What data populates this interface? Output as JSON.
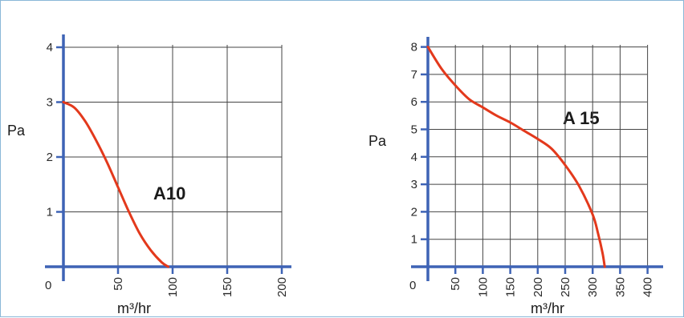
{
  "colors": {
    "grid": "#454545",
    "axis": "#3e63b5",
    "curve": "#e3391c",
    "border": "#8ab8d8"
  },
  "chart_data": [
    {
      "type": "line",
      "title": "",
      "curve_label": "A10",
      "xlabel": "m³/hr",
      "ylabel": "Pa",
      "xlim": [
        0,
        200
      ],
      "ylim": [
        0,
        4
      ],
      "x_ticks": [
        0,
        50,
        100,
        150,
        200
      ],
      "y_ticks": [
        1,
        2,
        3,
        4
      ],
      "origin_label": "0",
      "x_tick_labels": [
        "50",
        "100",
        "150",
        "200"
      ],
      "y_tick_labels": [
        "1",
        "2",
        "3",
        "4"
      ],
      "grid": true,
      "series": [
        {
          "x": [
            0,
            10,
            20,
            30,
            40,
            50,
            60,
            70,
            80,
            90,
            96
          ],
          "y": [
            3.0,
            2.9,
            2.65,
            2.3,
            1.9,
            1.45,
            1.0,
            0.6,
            0.3,
            0.08,
            0.0
          ]
        }
      ]
    },
    {
      "type": "line",
      "title": "",
      "curve_label": "A 15",
      "xlabel": "m³/hr",
      "ylabel": "Pa",
      "xlim": [
        0,
        400
      ],
      "ylim": [
        0,
        8
      ],
      "x_ticks": [
        0,
        50,
        100,
        150,
        200,
        250,
        300,
        350,
        400
      ],
      "y_ticks": [
        1,
        2,
        3,
        4,
        5,
        6,
        7,
        8
      ],
      "origin_label": "0",
      "x_tick_labels": [
        "50",
        "100",
        "150",
        "200",
        "250",
        "300",
        "350",
        "400"
      ],
      "y_tick_labels": [
        "1",
        "2",
        "3",
        "4",
        "5",
        "6",
        "7",
        "8"
      ],
      "grid": true,
      "series": [
        {
          "x": [
            0,
            25,
            50,
            75,
            100,
            125,
            150,
            175,
            200,
            225,
            250,
            275,
            300,
            310,
            318,
            322
          ],
          "y": [
            8.0,
            7.2,
            6.6,
            6.1,
            5.8,
            5.5,
            5.25,
            4.95,
            4.65,
            4.3,
            3.7,
            2.95,
            1.9,
            1.2,
            0.5,
            0.0
          ]
        }
      ]
    }
  ]
}
